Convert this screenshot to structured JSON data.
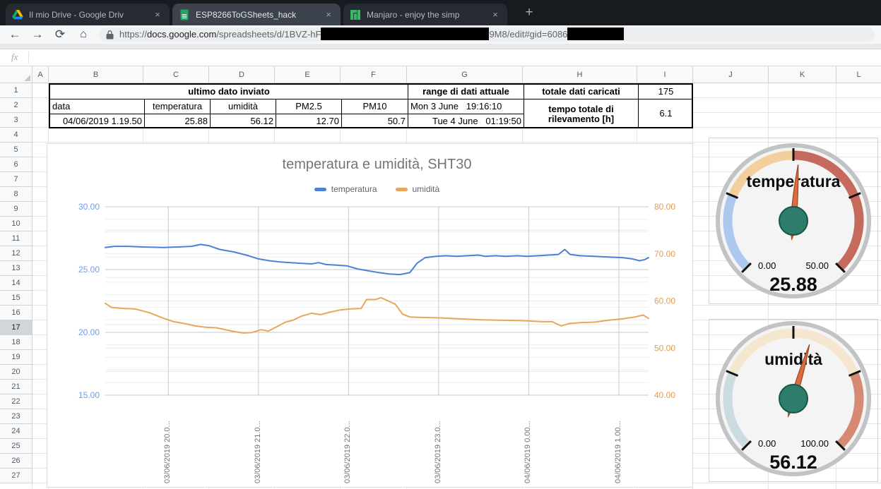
{
  "browser": {
    "tabs": [
      {
        "title": "Il mio Drive - Google Driv",
        "icon": "google-drive-icon"
      },
      {
        "title": "ESP8266ToGSheets_hack",
        "icon": "google-sheets-icon",
        "active": true
      },
      {
        "title": "Manjaro - enjoy the simp",
        "icon": "manjaro-icon"
      }
    ],
    "close_glyph": "×",
    "new_tab_label": "+",
    "nav": {
      "back": "←",
      "forward": "→",
      "reload": "⟳",
      "home": "⌂"
    },
    "url": {
      "prefix": "https://",
      "domain": "docs.google.com",
      "path1": "/spreadsheets/d/1BVZ-hF",
      "path2": "9M8/edit#gid=6086",
      "redaction1_width": 238,
      "redaction2_width": 80
    }
  },
  "formula_bar": {
    "fx_label": "fx",
    "value": ""
  },
  "sheet": {
    "column_headers": [
      "A",
      "B",
      "C",
      "D",
      "E",
      "F",
      "G",
      "H",
      "I",
      "J",
      "K",
      "L"
    ],
    "row_count": 27,
    "highlighted_row": 17,
    "table": {
      "merged_title": "ultimo dato inviato",
      "range_title": "range di dati attuale",
      "total_title": "totale dati caricati",
      "total_value": "175",
      "headers": [
        "data",
        "temperatura",
        "umidità",
        "PM2.5",
        "PM10"
      ],
      "last_row": [
        "04/06/2019 1.19.50",
        "25.88",
        "56.12",
        "12.70",
        "50.7"
      ],
      "range_start": "Mon 3 June   19:16:10",
      "range_end": "Tue 4 June   01:19:50",
      "elapsed_title": "tempo totale di rilevamento [h]",
      "elapsed_value": "6.1"
    }
  },
  "chart_data": [
    {
      "type": "line",
      "title": "temperatura e umidità, SHT30",
      "legend": [
        {
          "label": "temperatura",
          "color": "#4d7fd6"
        },
        {
          "label": "umidità",
          "color": "#e7a65c"
        }
      ],
      "x_tick_labels": [
        "03/06/2019 20.0...",
        "03/06/2019 21.0...",
        "03/06/2019 22.0...",
        "03/06/2019 23.0...",
        "04/06/2019 0.00...",
        "04/06/2019 1.00..."
      ],
      "x_tick_hours": [
        20,
        21,
        22,
        23,
        24,
        25
      ],
      "x_range_hours": [
        19.3,
        25.33
      ],
      "left_axis": {
        "ticks": [
          "30.00",
          "25.00",
          "20.00",
          "15.00"
        ],
        "min": 15,
        "max": 30,
        "color": "#6d9eeb"
      },
      "right_axis": {
        "ticks": [
          "80.00",
          "70.00",
          "60.00",
          "50.00",
          "40.00"
        ],
        "min": 40,
        "max": 80,
        "color": "#e69b4f"
      },
      "grid": true,
      "legend_position": "top",
      "series": [
        {
          "name": "temperatura",
          "axis": "left",
          "color": "#4d7fd6",
          "points": [
            [
              19.3,
              26.75
            ],
            [
              19.4,
              26.85
            ],
            [
              19.55,
              26.85
            ],
            [
              19.72,
              26.8
            ],
            [
              19.95,
              26.75
            ],
            [
              20.1,
              26.8
            ],
            [
              20.26,
              26.85
            ],
            [
              20.36,
              27.0
            ],
            [
              20.45,
              26.9
            ],
            [
              20.57,
              26.6
            ],
            [
              20.73,
              26.4
            ],
            [
              20.89,
              26.1
            ],
            [
              21.0,
              25.85
            ],
            [
              21.12,
              25.7
            ],
            [
              21.24,
              25.6
            ],
            [
              21.36,
              25.55
            ],
            [
              21.47,
              25.5
            ],
            [
              21.59,
              25.45
            ],
            [
              21.67,
              25.55
            ],
            [
              21.75,
              25.4
            ],
            [
              21.87,
              25.35
            ],
            [
              21.98,
              25.3
            ],
            [
              22.1,
              25.05
            ],
            [
              22.22,
              24.9
            ],
            [
              22.34,
              24.75
            ],
            [
              22.45,
              24.65
            ],
            [
              22.57,
              24.6
            ],
            [
              22.68,
              24.75
            ],
            [
              22.76,
              25.5
            ],
            [
              22.85,
              25.95
            ],
            [
              22.97,
              26.05
            ],
            [
              23.08,
              26.1
            ],
            [
              23.2,
              26.05
            ],
            [
              23.32,
              26.1
            ],
            [
              23.44,
              26.15
            ],
            [
              23.52,
              26.05
            ],
            [
              23.63,
              26.1
            ],
            [
              23.75,
              26.05
            ],
            [
              23.87,
              26.1
            ],
            [
              23.98,
              26.05
            ],
            [
              24.1,
              26.1
            ],
            [
              24.22,
              26.15
            ],
            [
              24.33,
              26.2
            ],
            [
              24.4,
              26.6
            ],
            [
              24.46,
              26.2
            ],
            [
              24.57,
              26.1
            ],
            [
              24.73,
              26.05
            ],
            [
              24.88,
              26.0
            ],
            [
              25.04,
              25.95
            ],
            [
              25.15,
              25.85
            ],
            [
              25.23,
              25.7
            ],
            [
              25.29,
              25.8
            ],
            [
              25.33,
              25.95
            ]
          ]
        },
        {
          "name": "umidità",
          "axis": "right",
          "color": "#e7a65c",
          "points": [
            [
              19.3,
              59.5
            ],
            [
              19.37,
              58.6
            ],
            [
              19.51,
              58.4
            ],
            [
              19.63,
              58.3
            ],
            [
              19.79,
              57.5
            ],
            [
              19.95,
              56.3
            ],
            [
              20.06,
              55.6
            ],
            [
              20.18,
              55.2
            ],
            [
              20.3,
              54.7
            ],
            [
              20.42,
              54.4
            ],
            [
              20.53,
              54.3
            ],
            [
              20.61,
              54.0
            ],
            [
              20.73,
              53.5
            ],
            [
              20.83,
              53.2
            ],
            [
              20.93,
              53.3
            ],
            [
              21.03,
              53.9
            ],
            [
              21.11,
              53.6
            ],
            [
              21.2,
              54.5
            ],
            [
              21.3,
              55.5
            ],
            [
              21.38,
              55.9
            ],
            [
              21.48,
              56.8
            ],
            [
              21.59,
              57.4
            ],
            [
              21.69,
              57.1
            ],
            [
              21.79,
              57.6
            ],
            [
              21.91,
              58.1
            ],
            [
              22.02,
              58.3
            ],
            [
              22.14,
              58.4
            ],
            [
              22.2,
              60.3
            ],
            [
              22.3,
              60.3
            ],
            [
              22.36,
              60.7
            ],
            [
              22.44,
              60.0
            ],
            [
              22.52,
              59.3
            ],
            [
              22.6,
              57.2
            ],
            [
              22.68,
              56.6
            ],
            [
              22.81,
              56.5
            ],
            [
              23.01,
              56.4
            ],
            [
              23.24,
              56.2
            ],
            [
              23.48,
              56.0
            ],
            [
              23.71,
              55.9
            ],
            [
              23.95,
              55.8
            ],
            [
              24.15,
              55.6
            ],
            [
              24.26,
              55.6
            ],
            [
              24.36,
              54.7
            ],
            [
              24.45,
              55.2
            ],
            [
              24.57,
              55.4
            ],
            [
              24.73,
              55.5
            ],
            [
              24.88,
              55.9
            ],
            [
              25.04,
              56.2
            ],
            [
              25.18,
              56.6
            ],
            [
              25.27,
              57.0
            ],
            [
              25.33,
              56.3
            ]
          ]
        }
      ]
    },
    {
      "type": "gauge",
      "title": "temperatura",
      "value": 25.88,
      "display_value": "25.88",
      "min": 0,
      "max": 50,
      "min_label": "0.00",
      "max_label": "50.00",
      "segments": [
        {
          "from": 0,
          "to": 12.5,
          "color": "#adc7ef"
        },
        {
          "from": 12.5,
          "to": 25,
          "color": "#f2cf9d"
        },
        {
          "from": 25,
          "to": 50,
          "color": "#c76a5e"
        }
      ],
      "needle_color": "#e06b3f",
      "hub_color": "#2e7c6c"
    },
    {
      "type": "gauge",
      "title": "umidità",
      "value": 56.12,
      "display_value": "56.12",
      "min": 0,
      "max": 100,
      "min_label": "0.00",
      "max_label": "100.00",
      "segments": [
        {
          "from": 0,
          "to": 25,
          "color": "#cbdce1"
        },
        {
          "from": 25,
          "to": 75,
          "color": "#f4e6cf"
        },
        {
          "from": 75,
          "to": 100,
          "color": "#d78a73"
        }
      ],
      "needle_color": "#e06b3f",
      "hub_color": "#2e7c6c"
    }
  ]
}
